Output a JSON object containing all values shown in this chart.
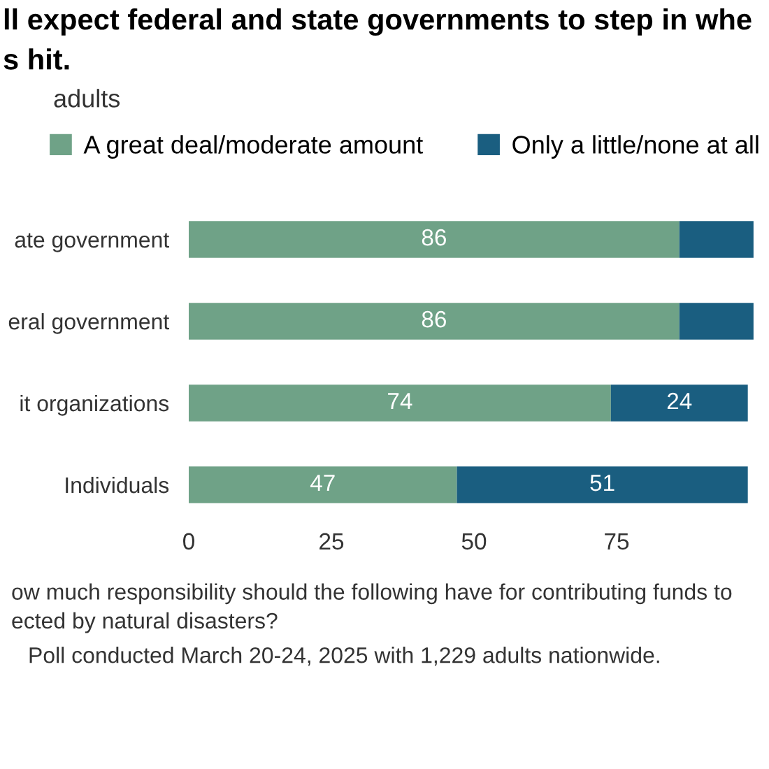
{
  "chart_data": {
    "type": "bar",
    "orientation": "horizontal",
    "stacked": true,
    "title": "ll expect federal and state governments to step in whe\ns hit.",
    "subtitle": "adults",
    "categories": [
      "ate government",
      "eral government",
      "it organizations",
      "Individuals"
    ],
    "series": [
      {
        "name": "A great deal/moderate amount",
        "color": "#6fa287",
        "values": [
          86,
          86,
          74,
          47
        ],
        "value_labels": [
          "86",
          "86",
          "74",
          "47"
        ]
      },
      {
        "name": "Only a little/none at all",
        "color": "#1a5e80",
        "values": [
          13,
          13,
          24,
          51
        ],
        "value_labels": [
          null,
          null,
          "24",
          "51"
        ]
      }
    ],
    "xlim": [
      0,
      100
    ],
    "xticks": [
      0,
      25,
      50,
      75
    ],
    "grid": false,
    "legend": "top",
    "annotations": [
      "ow much responsibility should the following have for contributing funds to\nected by natural disasters?",
      "Poll conducted March 20-24, 2025 with 1,229 adults nationwide."
    ]
  }
}
